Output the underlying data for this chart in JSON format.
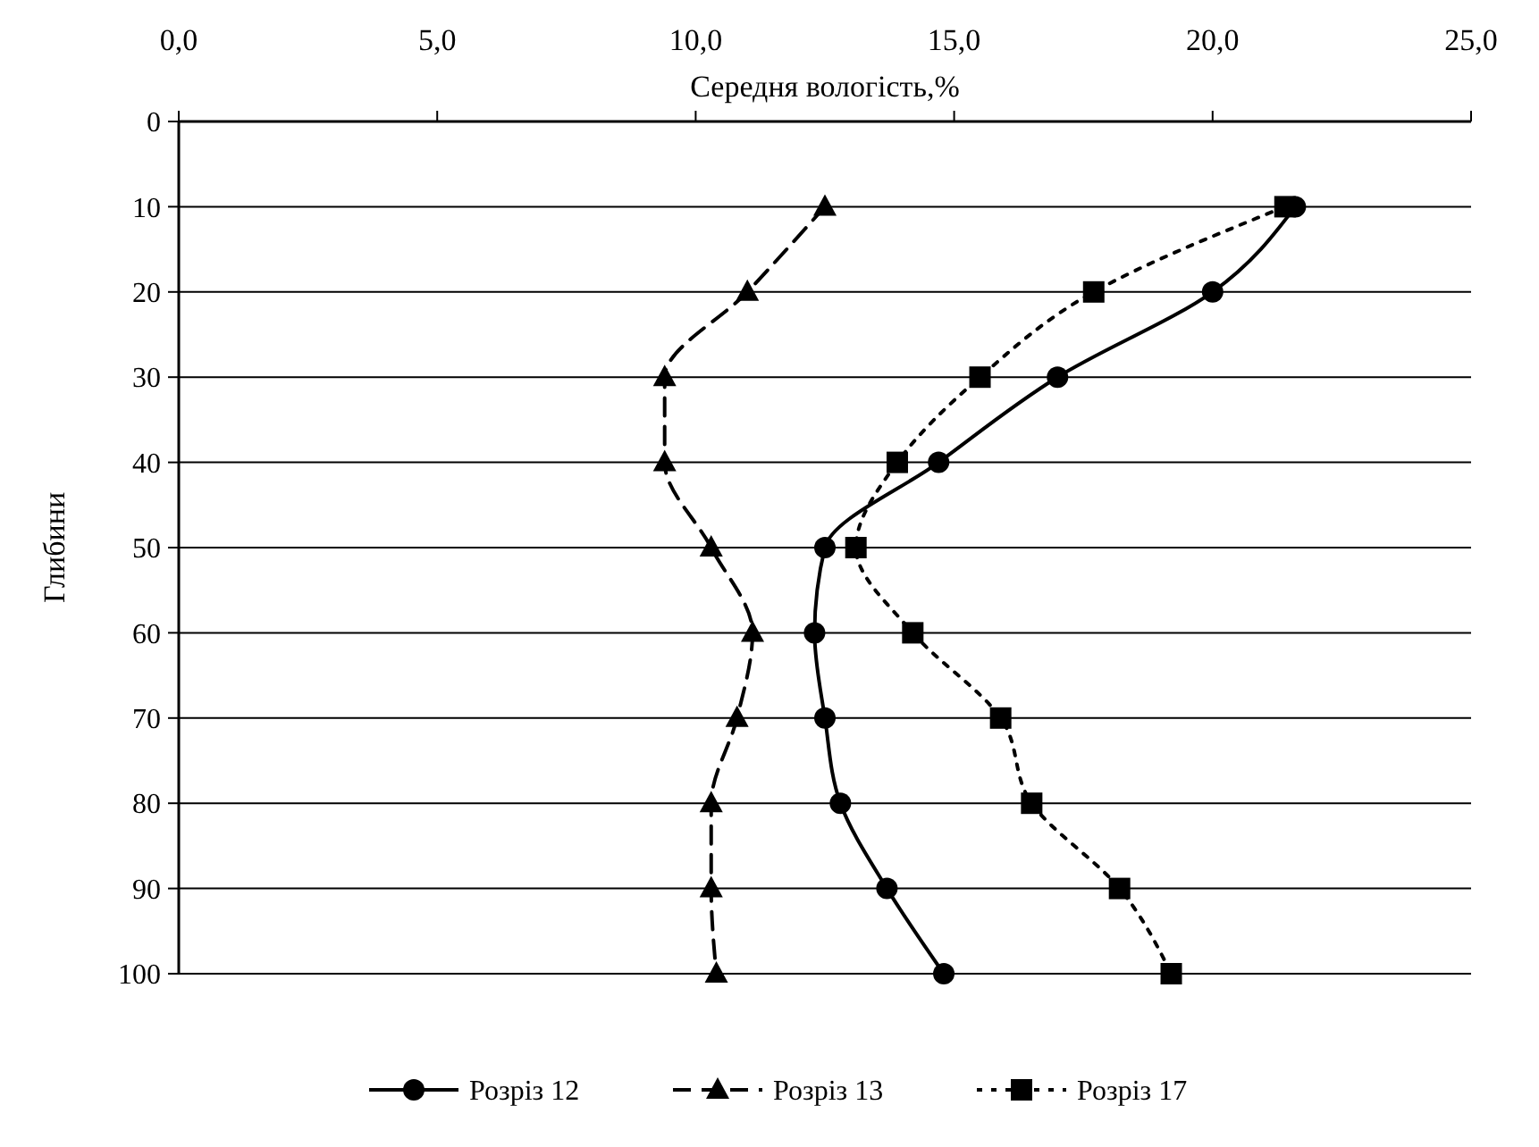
{
  "chart_data": {
    "type": "line",
    "xlabel": "Середня вологість,%",
    "ylabel": "Глибини",
    "xlim": [
      0,
      25
    ],
    "xticks": [
      {
        "value": 0,
        "label": "0,0"
      },
      {
        "value": 5,
        "label": "5,0"
      },
      {
        "value": 10,
        "label": "10,0"
      },
      {
        "value": 15,
        "label": "15,0"
      },
      {
        "value": 20,
        "label": "20,0"
      },
      {
        "value": 25,
        "label": "25,0"
      }
    ],
    "ylim": [
      100,
      0
    ],
    "yticks": [
      0,
      10,
      20,
      30,
      40,
      50,
      60,
      70,
      80,
      90,
      100
    ],
    "grid": "y",
    "legend": "bottom",
    "series": [
      {
        "name": "Розріз 12",
        "color": "#000000",
        "marker": "circle",
        "line_style": "solid",
        "x": [
          21.6,
          20.0,
          17.0,
          14.7,
          12.5,
          12.3,
          12.5,
          12.8,
          13.7,
          14.8
        ],
        "values": [
          10,
          20,
          30,
          40,
          50,
          60,
          70,
          80,
          90,
          100
        ]
      },
      {
        "name": "Розріз 13",
        "color": "#000000",
        "marker": "triangle",
        "line_style": "dashed",
        "x": [
          12.5,
          11.0,
          9.4,
          9.4,
          10.3,
          11.1,
          10.8,
          10.3,
          10.3,
          10.4
        ],
        "values": [
          10,
          20,
          30,
          40,
          50,
          60,
          70,
          80,
          90,
          100
        ]
      },
      {
        "name": "Розріз 17",
        "color": "#000000",
        "marker": "square",
        "line_style": "dotted",
        "x": [
          21.4,
          17.7,
          15.5,
          13.9,
          13.1,
          14.2,
          15.9,
          16.5,
          18.2,
          19.2
        ],
        "values": [
          10,
          20,
          30,
          40,
          50,
          60,
          70,
          80,
          90,
          100
        ]
      }
    ]
  }
}
